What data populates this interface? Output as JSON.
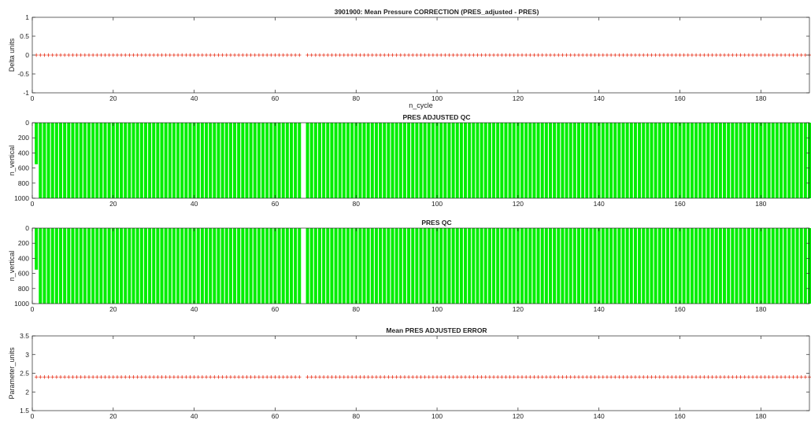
{
  "figure_title": "3901900: Mean Pressure CORRECTION (PRES_adjusted - PRES)",
  "chart_data": [
    {
      "type": "scatter",
      "title": "3901900: Mean Pressure CORRECTION (PRES_adjusted - PRES)",
      "xlabel": "n_cycle",
      "ylabel": "Delta units",
      "xlim": [
        0,
        192
      ],
      "ylim": [
        -1,
        1
      ],
      "xticks": [
        0,
        20,
        40,
        60,
        80,
        100,
        120,
        140,
        160,
        180
      ],
      "yticks": [
        1,
        0.5,
        0,
        -0.5,
        -1
      ],
      "marker": "+",
      "color": "#e8311a",
      "series": [
        {
          "x_range": [
            1,
            192
          ],
          "missing_x": [
            67
          ],
          "y": 0
        }
      ]
    },
    {
      "type": "bar",
      "title": "PRES ADJUSTED QC",
      "xlabel": "",
      "ylabel": "n_vertical",
      "xlim": [
        0,
        192
      ],
      "ylim": [
        1000,
        0
      ],
      "xticks": [
        0,
        20,
        40,
        60,
        80,
        100,
        120,
        140,
        160,
        180
      ],
      "yticks": [
        0,
        200,
        400,
        600,
        800,
        1000
      ],
      "color": "#00ee00",
      "cycles": [
        1,
        192
      ],
      "missing_cycles": [
        67
      ],
      "cycle_1_gap": [
        550,
        1000
      ],
      "profile_depth": 1000
    },
    {
      "type": "bar",
      "title": "PRES QC",
      "xlabel": "",
      "ylabel": "n_vertical",
      "xlim": [
        0,
        192
      ],
      "ylim": [
        1000,
        0
      ],
      "xticks": [
        0,
        20,
        40,
        60,
        80,
        100,
        120,
        140,
        160,
        180
      ],
      "yticks": [
        0,
        200,
        400,
        600,
        800,
        1000
      ],
      "color": "#00ee00",
      "cycles": [
        1,
        192
      ],
      "missing_cycles": [
        67
      ],
      "cycle_1_gap": [
        550,
        1000
      ],
      "profile_depth": 1000
    },
    {
      "type": "scatter",
      "title": "Mean PRES ADJUSTED ERROR",
      "xlabel": "",
      "ylabel": "Parameter_units",
      "xlim": [
        0,
        192
      ],
      "ylim": [
        1.5,
        3.5
      ],
      "xticks": [
        0,
        20,
        40,
        60,
        80,
        100,
        120,
        140,
        160,
        180
      ],
      "yticks": [
        3.5,
        3,
        2.5,
        2,
        1.5
      ],
      "marker": "+",
      "color": "#e8311a",
      "series": [
        {
          "x_range": [
            1,
            192
          ],
          "missing_x": [
            67
          ],
          "y": 2.4
        }
      ]
    }
  ]
}
